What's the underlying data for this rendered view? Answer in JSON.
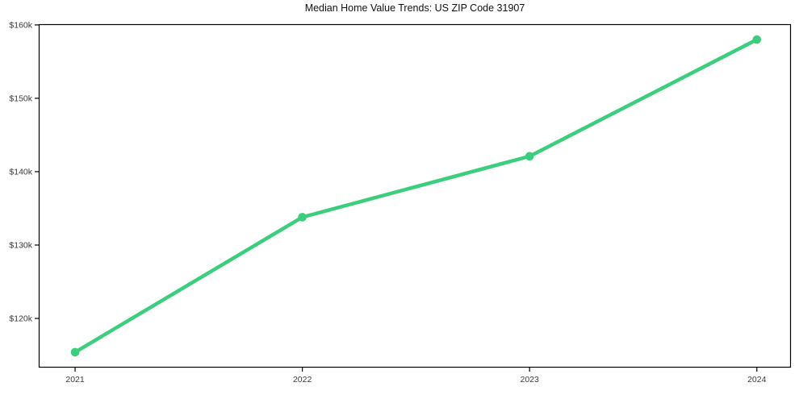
{
  "chart_data": {
    "type": "line",
    "title": "Median Home Value Trends: US ZIP Code 31907",
    "xlabel": "",
    "ylabel": "",
    "x": [
      2021,
      2022,
      2023,
      2024
    ],
    "x_tick_labels": [
      "2021",
      "2022",
      "2023",
      "2024"
    ],
    "series": [
      {
        "name": "Median home value",
        "values": [
          115400,
          133800,
          142100,
          158000
        ],
        "color": "#3bce7c",
        "marker": "circle"
      }
    ],
    "y_ticks": [
      120000,
      130000,
      140000,
      150000,
      160000
    ],
    "y_tick_labels": [
      "$120k",
      "$130k",
      "$140k",
      "$150k",
      "$160k"
    ],
    "ylim": [
      113300,
      160100
    ],
    "xlim": [
      2020.84,
      2024.15
    ],
    "grid": false,
    "legend": false,
    "colors": {
      "axis": "#000000",
      "tick_label": "#3a3a3a",
      "title": "#111111",
      "background": "#ffffff"
    }
  }
}
